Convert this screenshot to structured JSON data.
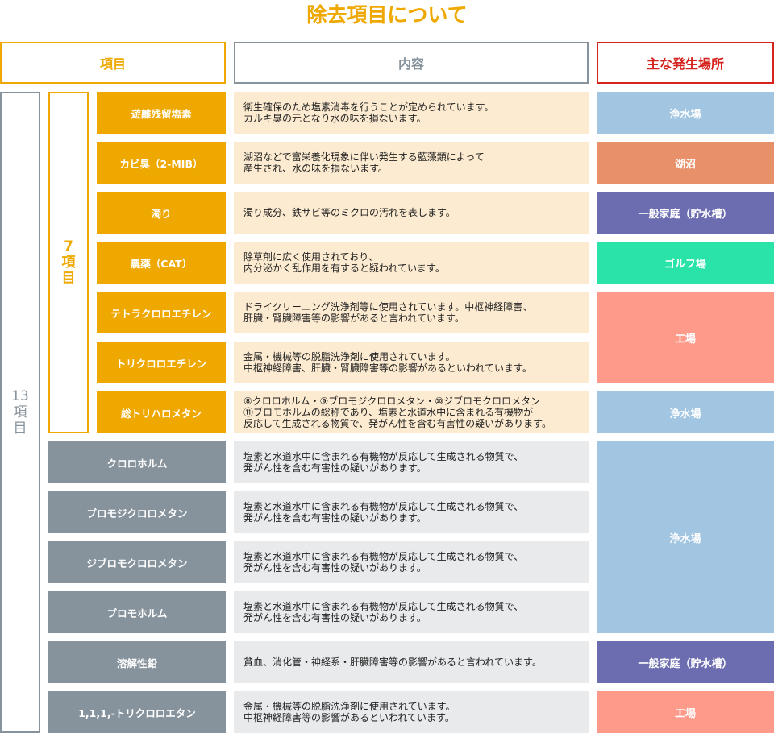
{
  "title": "除去項目について",
  "headers": {
    "item": "項目",
    "content": "内容",
    "location": "主な発生場所"
  },
  "groups": {
    "total": "13\n項\n目",
    "seven": "7\n項\n目"
  },
  "colors": {
    "orange": "#eea800",
    "cream": "#fcebd0",
    "gray": "#87939c",
    "light_gray": "#e8eaec",
    "red": "#d5231d"
  },
  "rows": [
    {
      "name": "遊離残留塩素",
      "group": "seven",
      "content": "衛生確保のため塩素消毒を行うことが定められています。\nカルキ臭の元となり水の味を損ないます。"
    },
    {
      "name": "カビ臭（2-MIB）",
      "group": "seven",
      "content": "湖沼などで富栄養化現象に伴い発生する藍藻類によって\n産生され、水の味を損ないます。"
    },
    {
      "name": "濁り",
      "group": "seven",
      "content": "濁り成分、鉄サビ等のミクロの汚れを表します。"
    },
    {
      "name": "農薬（CAT）",
      "group": "seven",
      "content": "除草剤に広く使用されており、\n内分泌かく乱作用を有すると疑われています。"
    },
    {
      "name": "テトラクロロエチレン",
      "group": "seven",
      "content": "ドライクリーニング洗浄剤等に使用されています。中枢神経障害、\n肝臓・腎臓障害等の影響があると言われています。"
    },
    {
      "name": "トリクロロエチレン",
      "group": "seven",
      "content": "金属・機械等の脱脂洗浄剤に使用されています。\n中枢神経障害、肝臓・腎臓障害等の影響があるといわれています。"
    },
    {
      "name": "総トリハロメタン",
      "group": "seven",
      "content": "⑧クロロホルム・⑨ブロモジクロロメタン・⑩ジブロモクロロメタン\n⑪ブロモホルムの総称であり、塩素と水道水中に含まれる有機物が\n反応して生成される物質で、発がん性を含む有害性の疑いがあります。"
    },
    {
      "name": "クロロホルム",
      "group": "other",
      "content": "塩素と水道水中に含まれる有機物が反応して生成される物質で、\n発がん性を含む有害性の疑いがあります。"
    },
    {
      "name": "ブロモジクロロメタン",
      "group": "other",
      "content": "塩素と水道水中に含まれる有機物が反応して生成される物質で、\n発がん性を含む有害性の疑いがあります。"
    },
    {
      "name": "ジブロモクロロメタン",
      "group": "other",
      "content": "塩素と水道水中に含まれる有機物が反応して生成される物質で、\n発がん性を含む有害性の疑いがあります。"
    },
    {
      "name": "ブロモホルム",
      "group": "other",
      "content": "塩素と水道水中に含まれる有機物が反応して生成される物質で、\n発がん性を含む有害性の疑いがあります。"
    },
    {
      "name": "溶解性鉛",
      "group": "other",
      "content": "貧血、消化管・神経系・肝臓障害等の影響があると言われています。"
    },
    {
      "name": "1,1,1,-トリクロロエタン",
      "group": "other",
      "content": "金属・機械等の脱脂洗浄剤に使用されています。\n中枢神経障害等の影響があるといわれています。"
    }
  ],
  "locations": [
    {
      "label": "浄水場",
      "start_row": 1,
      "end_row": 1,
      "color": "#a2c6e2"
    },
    {
      "label": "湖沼",
      "start_row": 2,
      "end_row": 2,
      "color": "#e8906a"
    },
    {
      "label": "一般家庭（貯水槽）",
      "start_row": 3,
      "end_row": 3,
      "color": "#6c6cb0"
    },
    {
      "label": "ゴルフ場",
      "start_row": 4,
      "end_row": 4,
      "color": "#2ae3a8"
    },
    {
      "label": "工場",
      "start_row": 5,
      "end_row": 6,
      "color": "#fd9a8a"
    },
    {
      "label": "浄水場",
      "start_row": 7,
      "end_row": 7,
      "color": "#a2c6e2"
    },
    {
      "label": "浄水場",
      "start_row": 8,
      "end_row": 11,
      "color": "#a2c6e2"
    },
    {
      "label": "一般家庭（貯水槽）",
      "start_row": 12,
      "end_row": 12,
      "color": "#6c6cb0"
    },
    {
      "label": "工場",
      "start_row": 13,
      "end_row": 13,
      "color": "#fd9a8a"
    }
  ]
}
